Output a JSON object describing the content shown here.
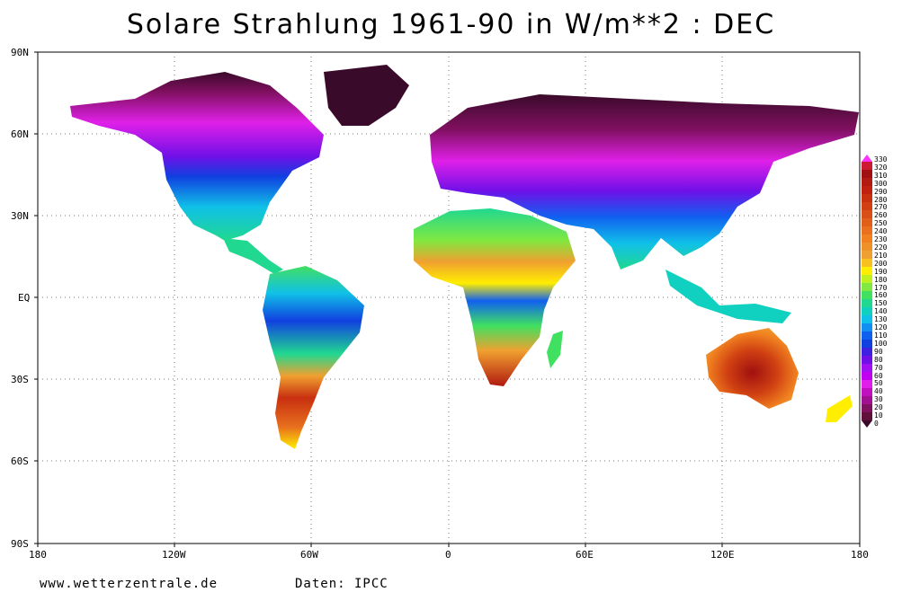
{
  "title": "Solare Strahlung 1961-90 in W/m**2 : DEC",
  "lat_labels": [
    "90N",
    "60N",
    "30N",
    "EQ",
    "30S",
    "60S",
    "90S"
  ],
  "lon_labels": [
    "180",
    "120W",
    "60W",
    "0",
    "60E",
    "120E",
    "180"
  ],
  "legend": {
    "labels": [
      "330",
      "320",
      "310",
      "300",
      "290",
      "280",
      "270",
      "260",
      "250",
      "240",
      "230",
      "220",
      "210",
      "200",
      "190",
      "180",
      "170",
      "160",
      "150",
      "140",
      "130",
      "120",
      "110",
      "100",
      "90",
      "80",
      "70",
      "60",
      "50",
      "40",
      "30",
      "20",
      "10",
      "0"
    ],
    "colors": [
      "#ff33ff",
      "#cc1a33",
      "#a01010",
      "#b01a10",
      "#c02010",
      "#c83010",
      "#d04012",
      "#d85016",
      "#e0601a",
      "#e8701e",
      "#f08020",
      "#f09028",
      "#f0a030",
      "#f8c020",
      "#ffee00",
      "#c0f020",
      "#80e840",
      "#40e060",
      "#20d890",
      "#10d0c0",
      "#10c0e8",
      "#1090f0",
      "#1060f0",
      "#1040e0",
      "#4020e0",
      "#7010e8",
      "#a010f0",
      "#c000f0",
      "#e020e8",
      "#c010c0",
      "#a01090",
      "#801060",
      "#60103a",
      "#3a0a2a"
    ]
  },
  "footer": {
    "site": "www.wetterzentrale.de",
    "data": "Daten: IPCC"
  }
}
